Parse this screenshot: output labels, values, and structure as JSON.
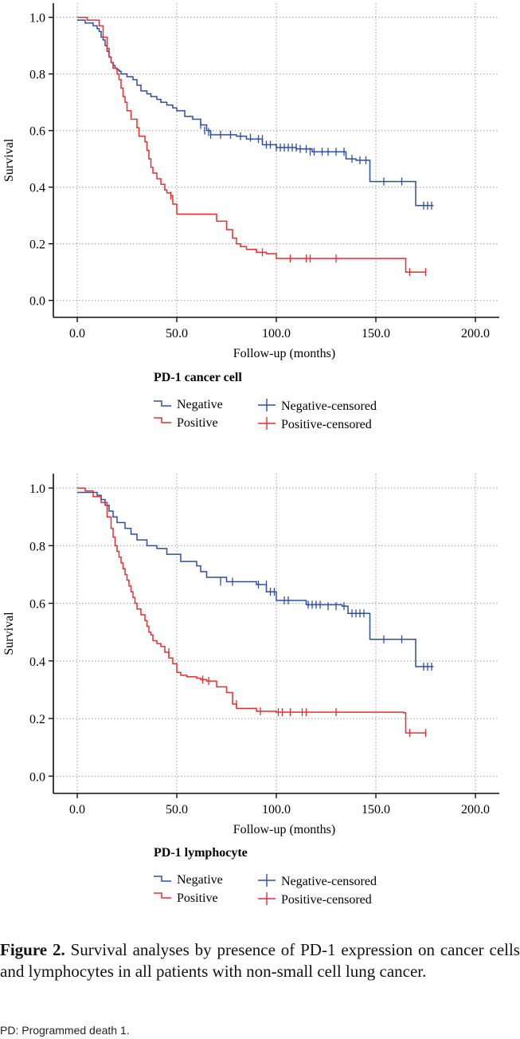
{
  "colors": {
    "negative": "#2e4fa0",
    "positive": "#e03030",
    "grid": "#9a9a9a",
    "axis": "#111111"
  },
  "chart_data": [
    {
      "type": "line",
      "chart_style": "kaplan-meier step",
      "title": "",
      "xlabel": "Follow-up (months)",
      "ylabel": "Survival",
      "xlim": [
        -12,
        212
      ],
      "ylim": [
        -0.06,
        1.05
      ],
      "xticks": [
        0,
        50,
        100,
        150,
        200
      ],
      "xtick_labels": [
        "0.0",
        "50.0",
        "100.0",
        "150.0",
        "200.0"
      ],
      "yticks": [
        0,
        0.2,
        0.4,
        0.6,
        0.8,
        1.0
      ],
      "ytick_labels": [
        "0.0",
        "0.2",
        "0.4",
        "0.6",
        "0.8",
        "1.0"
      ],
      "grid": true,
      "legend_title": "PD-1 cancer cell",
      "legend": [
        "Negative",
        "Positive",
        "Negative-censored",
        "Positive-censored"
      ],
      "series": [
        {
          "name": "Negative",
          "color_key": "negative",
          "x": [
            0,
            4,
            8,
            10,
            11,
            12,
            13,
            14,
            15,
            16,
            17,
            18,
            19,
            20,
            21,
            22,
            25,
            28,
            30,
            32,
            35,
            37,
            40,
            42,
            45,
            48,
            50,
            54,
            58,
            62,
            65,
            67,
            80,
            85,
            93,
            100,
            110,
            118,
            135,
            140,
            147,
            165,
            170,
            179
          ],
          "y": [
            0.99,
            0.98,
            0.97,
            0.96,
            0.95,
            0.93,
            0.92,
            0.9,
            0.88,
            0.86,
            0.84,
            0.83,
            0.82,
            0.815,
            0.81,
            0.8,
            0.79,
            0.78,
            0.76,
            0.74,
            0.73,
            0.72,
            0.71,
            0.7,
            0.69,
            0.68,
            0.67,
            0.65,
            0.64,
            0.62,
            0.6,
            0.585,
            0.58,
            0.57,
            0.55,
            0.54,
            0.535,
            0.525,
            0.5,
            0.495,
            0.42,
            0.42,
            0.335,
            0.335
          ]
        },
        {
          "name": "Positive",
          "color_key": "positive",
          "x": [
            0,
            5,
            11,
            13,
            15,
            16,
            17,
            18,
            20,
            21,
            22,
            23,
            24,
            25,
            27,
            30,
            31,
            34,
            35,
            36,
            37,
            38,
            40,
            42,
            44,
            45,
            47,
            48,
            50,
            60,
            70,
            75,
            78,
            80,
            82,
            85,
            90,
            95,
            100,
            120,
            164,
            165,
            175
          ],
          "y": [
            1.0,
            0.99,
            0.97,
            0.93,
            0.89,
            0.86,
            0.84,
            0.82,
            0.8,
            0.78,
            0.75,
            0.72,
            0.7,
            0.67,
            0.64,
            0.61,
            0.58,
            0.56,
            0.53,
            0.5,
            0.47,
            0.45,
            0.43,
            0.41,
            0.39,
            0.38,
            0.37,
            0.34,
            0.305,
            0.305,
            0.28,
            0.25,
            0.22,
            0.2,
            0.19,
            0.18,
            0.17,
            0.165,
            0.148,
            0.148,
            0.148,
            0.1,
            0.1
          ]
        }
      ],
      "censored": [
        {
          "series": "Negative",
          "color_key": "negative",
          "x": [
            62,
            64,
            66,
            67,
            72,
            77,
            82,
            87,
            91,
            93,
            95,
            97,
            100,
            102,
            104,
            106,
            108,
            110,
            112,
            115,
            117,
            119,
            123,
            126,
            130,
            134,
            138,
            142,
            145,
            154,
            163,
            174,
            176,
            178
          ],
          "y": [
            0.62,
            0.6,
            0.595,
            0.585,
            0.585,
            0.585,
            0.58,
            0.575,
            0.57,
            0.57,
            0.55,
            0.55,
            0.54,
            0.54,
            0.54,
            0.54,
            0.54,
            0.54,
            0.535,
            0.535,
            0.525,
            0.525,
            0.525,
            0.525,
            0.525,
            0.525,
            0.5,
            0.495,
            0.495,
            0.42,
            0.42,
            0.335,
            0.335,
            0.335
          ]
        },
        {
          "series": "Positive",
          "color_key": "positive",
          "x": [
            47,
            93,
            107,
            115,
            117,
            130,
            167,
            175
          ],
          "y": [
            0.37,
            0.17,
            0.148,
            0.148,
            0.148,
            0.148,
            0.1,
            0.1
          ]
        }
      ]
    },
    {
      "type": "line",
      "chart_style": "kaplan-meier step",
      "title": "",
      "xlabel": "Follow-up (months)",
      "ylabel": "Survival",
      "xlim": [
        -12,
        212
      ],
      "ylim": [
        -0.06,
        1.05
      ],
      "xticks": [
        0,
        50,
        100,
        150,
        200
      ],
      "xtick_labels": [
        "0.0",
        "50.0",
        "100.0",
        "150.0",
        "200.0"
      ],
      "yticks": [
        0,
        0.2,
        0.4,
        0.6,
        0.8,
        1.0
      ],
      "ytick_labels": [
        "0.0",
        "0.2",
        "0.4",
        "0.6",
        "0.8",
        "1.0"
      ],
      "grid": true,
      "legend_title": "PD-1 lymphocyte",
      "legend": [
        "Negative",
        "Positive",
        "Negative-censored",
        "Positive-censored"
      ],
      "series": [
        {
          "name": "Negative",
          "color_key": "negative",
          "x": [
            0,
            10,
            12,
            14,
            16,
            18,
            20,
            24,
            27,
            30,
            35,
            40,
            45,
            52,
            60,
            62,
            65,
            75,
            90,
            95,
            100,
            115,
            133,
            136,
            147,
            157,
            170,
            179
          ],
          "y": [
            0.985,
            0.975,
            0.96,
            0.94,
            0.92,
            0.9,
            0.88,
            0.86,
            0.84,
            0.82,
            0.8,
            0.79,
            0.77,
            0.745,
            0.73,
            0.71,
            0.69,
            0.675,
            0.665,
            0.64,
            0.61,
            0.595,
            0.59,
            0.565,
            0.475,
            0.475,
            0.38,
            0.38
          ]
        },
        {
          "name": "Positive",
          "color_key": "positive",
          "x": [
            0,
            4,
            8,
            12,
            15,
            17,
            18,
            19,
            20,
            21,
            22,
            23,
            24,
            25,
            26,
            27,
            28,
            29,
            30,
            32,
            34,
            35,
            36,
            37,
            38,
            40,
            42,
            44,
            46,
            48,
            50,
            52,
            55,
            60,
            62,
            65,
            70,
            75,
            78,
            80,
            90,
            100,
            164,
            165,
            175
          ],
          "y": [
            1.0,
            0.99,
            0.97,
            0.95,
            0.9,
            0.86,
            0.83,
            0.8,
            0.78,
            0.76,
            0.74,
            0.72,
            0.7,
            0.68,
            0.66,
            0.64,
            0.62,
            0.6,
            0.58,
            0.56,
            0.54,
            0.52,
            0.5,
            0.49,
            0.47,
            0.46,
            0.45,
            0.43,
            0.41,
            0.39,
            0.36,
            0.35,
            0.345,
            0.34,
            0.335,
            0.33,
            0.31,
            0.29,
            0.25,
            0.235,
            0.225,
            0.222,
            0.22,
            0.15,
            0.15
          ]
        }
      ],
      "censored": [
        {
          "series": "Negative",
          "color_key": "negative",
          "x": [
            72,
            78,
            91,
            95,
            97,
            99,
            104,
            106,
            116,
            118,
            120,
            122,
            126,
            130,
            134,
            138,
            140,
            142,
            144,
            154,
            163,
            174,
            176,
            178
          ],
          "y": [
            0.675,
            0.675,
            0.665,
            0.665,
            0.64,
            0.64,
            0.61,
            0.61,
            0.595,
            0.595,
            0.595,
            0.595,
            0.59,
            0.59,
            0.59,
            0.565,
            0.565,
            0.565,
            0.565,
            0.475,
            0.475,
            0.38,
            0.38,
            0.38
          ]
        },
        {
          "series": "Positive",
          "color_key": "positive",
          "x": [
            46,
            63,
            66,
            80,
            92,
            101,
            103,
            107,
            113,
            115,
            130,
            167,
            175
          ],
          "y": [
            0.43,
            0.335,
            0.33,
            0.25,
            0.225,
            0.222,
            0.222,
            0.222,
            0.222,
            0.222,
            0.222,
            0.15,
            0.15
          ]
        }
      ]
    }
  ],
  "caption": {
    "label": "Figure 2.",
    "text": " Survival analyses by presence of PD-1 expression on cancer cells and lymphocytes in all patients with non-small cell lung cancer."
  },
  "footnote": "PD: Programmed death 1."
}
